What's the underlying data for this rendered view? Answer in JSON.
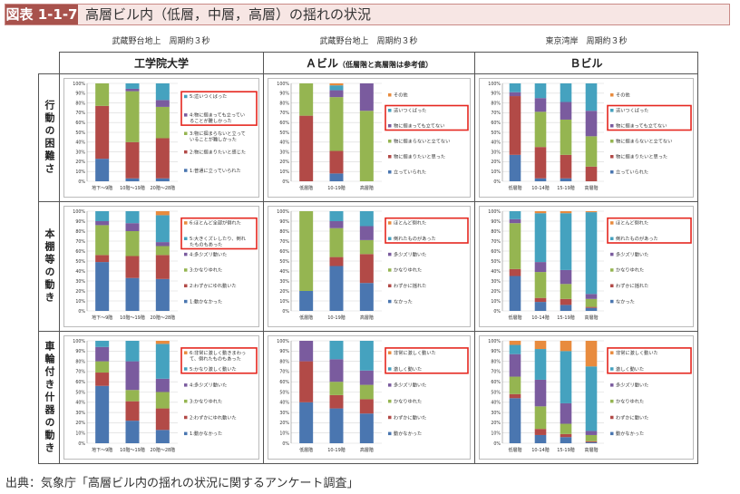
{
  "header": {
    "figure_id": "図表 1-1-7",
    "title": "高層ビル内（低層，中層，高層）の揺れの状況"
  },
  "subheaders": [
    "武蔵野台地上　周期約３秒",
    "武蔵野台地上　周期約３秒",
    "東京湾岸　周期約３秒"
  ],
  "columns": [
    {
      "name": "工学院大学",
      "note": ""
    },
    {
      "name": "Ａビル",
      "note": "（低層階と高層階は参考値）"
    },
    {
      "name": "Ｂビル",
      "note": ""
    }
  ],
  "rows": [
    "行動の困難さ",
    "本棚等の動き",
    "車輪付き什器の動き"
  ],
  "colors": {
    "blue": "#4a76b0",
    "red": "#b24a47",
    "green": "#95b551",
    "purple": "#7a5b9e",
    "teal": "#45a2bf",
    "orange": "#e88b3e",
    "highlight": "#e5271f"
  },
  "chart_data": [
    {
      "type": "bar",
      "stacked": true,
      "row": "行動の困難さ",
      "building": "工学院大学",
      "categories": [
        "地下～9階",
        "10階～19階",
        "20階～28階"
      ],
      "ylim": [
        0,
        100
      ],
      "yticks": [
        "0%",
        "10%",
        "20%",
        "30%",
        "40%",
        "50%",
        "60%",
        "70%",
        "80%",
        "90%",
        "100%"
      ],
      "highlight": [
        0,
        1
      ],
      "series": [
        {
          "name": "1:普通に立っていられた",
          "color": "#4a76b0",
          "values": [
            23,
            3,
            3
          ]
        },
        {
          "name": "2:物に掴まりたいと感じた",
          "color": "#b24a47",
          "values": [
            54,
            37,
            41
          ]
        },
        {
          "name": "3:物に掴まらないと立っていることが難しかった",
          "color": "#95b551",
          "values": [
            23,
            52,
            32
          ]
        },
        {
          "name": "4:物に掴まっても立っていることが難しかった",
          "color": "#7a5b9e",
          "values": [
            0,
            2.5,
            7
          ]
        },
        {
          "name": "5:這いつくばった",
          "color": "#45a2bf",
          "values": [
            0,
            5.5,
            17
          ]
        }
      ]
    },
    {
      "type": "bar",
      "stacked": true,
      "row": "行動の困難さ",
      "building": "Ａビル",
      "categories": [
        "低層階",
        "10-19階",
        "高層階"
      ],
      "ylim": [
        0,
        100
      ],
      "yticks": [
        "0%",
        "10%",
        "20%",
        "30%",
        "40%",
        "50%",
        "60%",
        "70%",
        "80%",
        "90%",
        "100%"
      ],
      "highlight": [
        1,
        2
      ],
      "series": [
        {
          "name": "立っていられた",
          "color": "#4a76b0",
          "values": [
            0,
            8,
            0
          ]
        },
        {
          "name": "物に掴まりたいと思った",
          "color": "#b24a47",
          "values": [
            67,
            23,
            0
          ]
        },
        {
          "name": "物に掴まらないと立てない",
          "color": "#95b551",
          "values": [
            33,
            55,
            72
          ]
        },
        {
          "name": "物に掴まっても立てない",
          "color": "#7a5b9e",
          "values": [
            0,
            7,
            28
          ]
        },
        {
          "name": "這いつくばった",
          "color": "#45a2bf",
          "values": [
            0,
            5,
            0
          ]
        },
        {
          "name": "その他",
          "color": "#e88b3e",
          "values": [
            0,
            2,
            0
          ]
        }
      ]
    },
    {
      "type": "bar",
      "stacked": true,
      "row": "行動の困難さ",
      "building": "Ｂビル",
      "categories": [
        "低層階",
        "10-14階",
        "15-19階",
        "高層階"
      ],
      "ylim": [
        0,
        100
      ],
      "yticks": [
        "0%",
        "10%",
        "20%",
        "30%",
        "40%",
        "50%",
        "60%",
        "70%",
        "80%",
        "90%",
        "100%"
      ],
      "highlight": [
        1,
        2
      ],
      "series": [
        {
          "name": "立っていられた",
          "color": "#4a76b0",
          "values": [
            27,
            3,
            3,
            0
          ]
        },
        {
          "name": "物に掴まりたいと思った",
          "color": "#b24a47",
          "values": [
            60,
            32,
            24,
            15
          ]
        },
        {
          "name": "物に掴まらないと立てない",
          "color": "#95b551",
          "values": [
            0,
            36,
            36,
            31
          ]
        },
        {
          "name": "物に掴まっても立てない",
          "color": "#7a5b9e",
          "values": [
            4,
            14,
            18,
            26
          ]
        },
        {
          "name": "這いつくばった",
          "color": "#45a2bf",
          "values": [
            9,
            15,
            19,
            28
          ]
        },
        {
          "name": "その他",
          "color": "#e88b3e",
          "values": [
            0,
            0,
            0,
            0
          ]
        }
      ]
    },
    {
      "type": "bar",
      "stacked": true,
      "row": "本棚等の動き",
      "building": "工学院大学",
      "categories": [
        "地下～9階",
        "10階～19階",
        "20階～28階"
      ],
      "ylim": [
        0,
        100
      ],
      "yticks": [
        "0%",
        "10%",
        "20%",
        "30%",
        "40%",
        "50%",
        "60%",
        "70%",
        "80%",
        "90%",
        "100%"
      ],
      "highlight": [
        0,
        1
      ],
      "series": [
        {
          "name": "1:動かなかった",
          "color": "#4a76b0",
          "values": [
            49,
            33,
            32
          ]
        },
        {
          "name": "2:わずかにゆれ動いた",
          "color": "#b24a47",
          "values": [
            7,
            22,
            24
          ]
        },
        {
          "name": "3:かなりゆれた",
          "color": "#95b551",
          "values": [
            30,
            25,
            9
          ]
        },
        {
          "name": "4:多少ズリ動いた",
          "color": "#7a5b9e",
          "values": [
            4,
            8,
            4
          ]
        },
        {
          "name": "5:大きくズレしたり、倒れたものもあった",
          "color": "#45a2bf",
          "values": [
            10,
            12,
            27
          ]
        },
        {
          "name": "6:ほとんど全部が倒れた",
          "color": "#e88b3e",
          "values": [
            0,
            0,
            4
          ]
        }
      ]
    },
    {
      "type": "bar",
      "stacked": true,
      "row": "本棚等の動き",
      "building": "Ａビル",
      "categories": [
        "低層階",
        "10-19階",
        "高層階"
      ],
      "ylim": [
        0,
        100
      ],
      "yticks": [
        "0%",
        "10%",
        "20%",
        "30%",
        "40%",
        "50%",
        "60%",
        "70%",
        "80%",
        "90%",
        "100%"
      ],
      "highlight": [
        0,
        1
      ],
      "series": [
        {
          "name": "なかった",
          "color": "#4a76b0",
          "values": [
            20,
            45,
            28
          ]
        },
        {
          "name": "わずかに揺れた",
          "color": "#b24a47",
          "values": [
            0,
            9,
            29
          ]
        },
        {
          "name": "かなりゆれた",
          "color": "#95b551",
          "values": [
            80,
            29,
            14
          ]
        },
        {
          "name": "多少ズリ動いた",
          "color": "#7a5b9e",
          "values": [
            0,
            7,
            14
          ]
        },
        {
          "name": "倒れたものがあった",
          "color": "#45a2bf",
          "values": [
            0,
            10,
            15
          ]
        },
        {
          "name": "ほとんど倒れた",
          "color": "#e88b3e",
          "values": [
            0,
            0,
            0
          ]
        }
      ]
    },
    {
      "type": "bar",
      "stacked": true,
      "row": "本棚等の動き",
      "building": "Ｂビル",
      "categories": [
        "低層階",
        "10-14階",
        "15-19階",
        "高層階"
      ],
      "ylim": [
        0,
        100
      ],
      "yticks": [
        "0%",
        "10%",
        "20%",
        "30%",
        "40%",
        "50%",
        "60%",
        "70%",
        "80%",
        "90%",
        "100%"
      ],
      "highlight": [
        0,
        1
      ],
      "series": [
        {
          "name": "なかった",
          "color": "#4a76b0",
          "values": [
            35,
            9,
            6,
            3
          ]
        },
        {
          "name": "わずかに揺れた",
          "color": "#b24a47",
          "values": [
            7,
            4,
            6,
            1
          ]
        },
        {
          "name": "かなりゆれた",
          "color": "#95b551",
          "values": [
            46,
            26,
            15,
            8
          ]
        },
        {
          "name": "多少ズリ動いた",
          "color": "#7a5b9e",
          "values": [
            4,
            10,
            14,
            5
          ]
        },
        {
          "name": "倒れたものがあった",
          "color": "#45a2bf",
          "values": [
            8,
            49,
            57,
            82
          ]
        },
        {
          "name": "ほとんど倒れた",
          "color": "#e88b3e",
          "values": [
            0,
            2,
            2,
            1
          ]
        }
      ]
    },
    {
      "type": "bar",
      "stacked": true,
      "row": "車輪付き什器の動き",
      "building": "工学院大学",
      "categories": [
        "地下～9階",
        "10階～19階",
        "20階～28階"
      ],
      "ylim": [
        0,
        100
      ],
      "yticks": [
        "0%",
        "10%",
        "20%",
        "30%",
        "40%",
        "50%",
        "60%",
        "70%",
        "80%",
        "90%",
        "100%"
      ],
      "highlight": [
        0,
        1
      ],
      "series": [
        {
          "name": "1:動かなかった",
          "color": "#4a76b0",
          "values": [
            56,
            22,
            13
          ]
        },
        {
          "name": "2:わずかにゆれ動いた",
          "color": "#b24a47",
          "values": [
            13,
            19,
            21
          ]
        },
        {
          "name": "3:かなりゆれた",
          "color": "#95b551",
          "values": [
            11,
            11,
            16
          ]
        },
        {
          "name": "4:多少ズリ動いた",
          "color": "#7a5b9e",
          "values": [
            14,
            28,
            13
          ]
        },
        {
          "name": "5:かなり激しく動いた",
          "color": "#45a2bf",
          "values": [
            6,
            20,
            34
          ]
        },
        {
          "name": "6:非常に激しく動きまわって、倒れたものもあった",
          "color": "#e88b3e",
          "values": [
            0,
            0,
            3
          ]
        }
      ]
    },
    {
      "type": "bar",
      "stacked": true,
      "row": "車輪付き什器の動き",
      "building": "Ａビル",
      "categories": [
        "低層階",
        "10-19階",
        "高層階"
      ],
      "ylim": [
        0,
        100
      ],
      "yticks": [
        "0%",
        "10%",
        "20%",
        "30%",
        "40%",
        "50%",
        "60%",
        "70%",
        "80%",
        "90%",
        "100%"
      ],
      "highlight": [
        0,
        1
      ],
      "series": [
        {
          "name": "動かなかった",
          "color": "#4a76b0",
          "values": [
            40,
            34,
            29
          ]
        },
        {
          "name": "わずかに動いた",
          "color": "#b24a47",
          "values": [
            40,
            13,
            14
          ]
        },
        {
          "name": "かなりゆれた",
          "color": "#95b551",
          "values": [
            0,
            13,
            14
          ]
        },
        {
          "name": "多少ズリ動いた",
          "color": "#7a5b9e",
          "values": [
            20,
            22,
            14
          ]
        },
        {
          "name": "激しく動いた",
          "color": "#45a2bf",
          "values": [
            0,
            18,
            29
          ]
        },
        {
          "name": "非常に激しく動いた",
          "color": "#e88b3e",
          "values": [
            0,
            0,
            0
          ]
        }
      ]
    },
    {
      "type": "bar",
      "stacked": true,
      "row": "車輪付き什器の動き",
      "building": "Ｂビル",
      "categories": [
        "低層階",
        "10-14階",
        "15-19階",
        "高層階"
      ],
      "ylim": [
        0,
        100
      ],
      "yticks": [
        "0%",
        "10%",
        "20%",
        "30%",
        "40%",
        "50%",
        "60%",
        "70%",
        "80%",
        "90%",
        "100%"
      ],
      "highlight": [
        0,
        1
      ],
      "series": [
        {
          "name": "動かなかった",
          "color": "#4a76b0",
          "values": [
            44,
            8,
            6,
            1
          ]
        },
        {
          "name": "わずかに動いた",
          "color": "#b24a47",
          "values": [
            4,
            6,
            3,
            1
          ]
        },
        {
          "name": "かなりゆれた",
          "color": "#95b551",
          "values": [
            17,
            22,
            10,
            6
          ]
        },
        {
          "name": "多少ズリ動いた",
          "color": "#7a5b9e",
          "values": [
            22,
            26,
            20,
            4
          ]
        },
        {
          "name": "激しく動いた",
          "color": "#45a2bf",
          "values": [
            9,
            30,
            51,
            63
          ]
        },
        {
          "name": "非常に激しく動いた",
          "color": "#e88b3e",
          "values": [
            4,
            8,
            10,
            25
          ]
        }
      ]
    }
  ],
  "footer": {
    "source": "出典：気象庁「高層ビル内の揺れの状況に関するアンケート調査」"
  }
}
